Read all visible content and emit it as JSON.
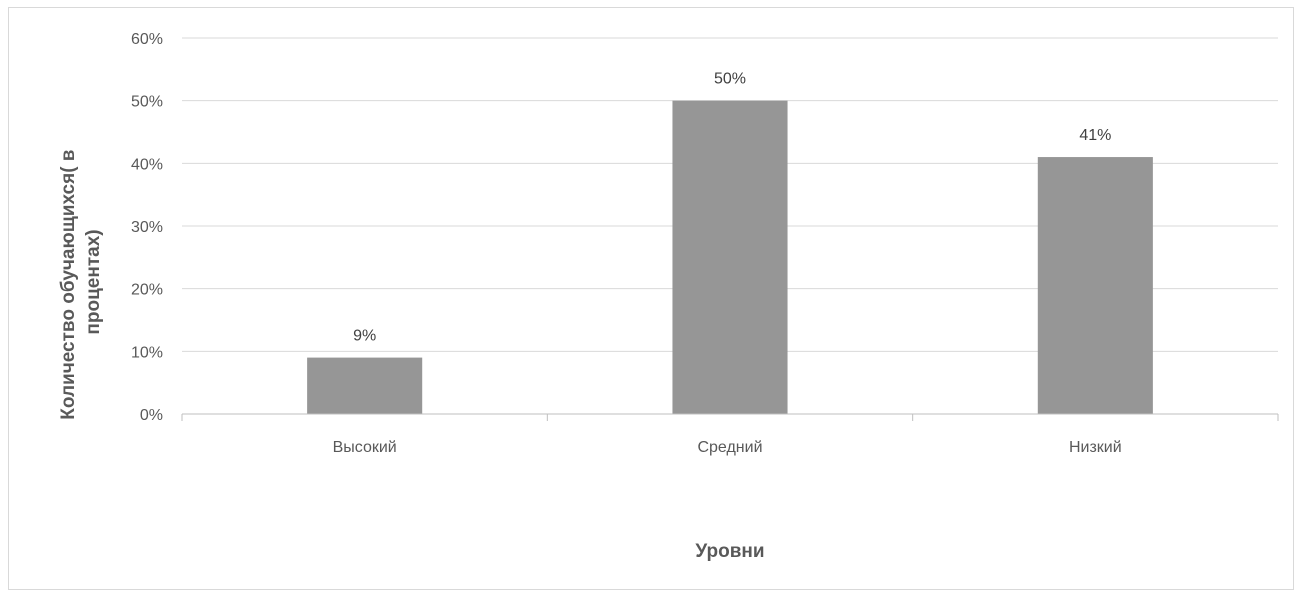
{
  "chart_data": {
    "type": "bar",
    "categories": [
      "Высокий",
      "Средний",
      "Низкий"
    ],
    "values": [
      9,
      50,
      41
    ],
    "data_labels": [
      "9%",
      "50%",
      "41%"
    ],
    "ylim": [
      0,
      60
    ],
    "yticks": [
      0,
      10,
      20,
      30,
      40,
      50,
      60
    ],
    "ytick_labels": [
      "0%",
      "10%",
      "20%",
      "30%",
      "40%",
      "50%",
      "60%"
    ],
    "xlabel": "Уровни",
    "ylabel_lines": [
      "Количество обучающихся( в",
      "процентах)"
    ],
    "grid": true,
    "legend": "none",
    "bar_color": "#969696",
    "grid_color": "#d9d9d9",
    "axis_color": "#bfbfbf"
  }
}
